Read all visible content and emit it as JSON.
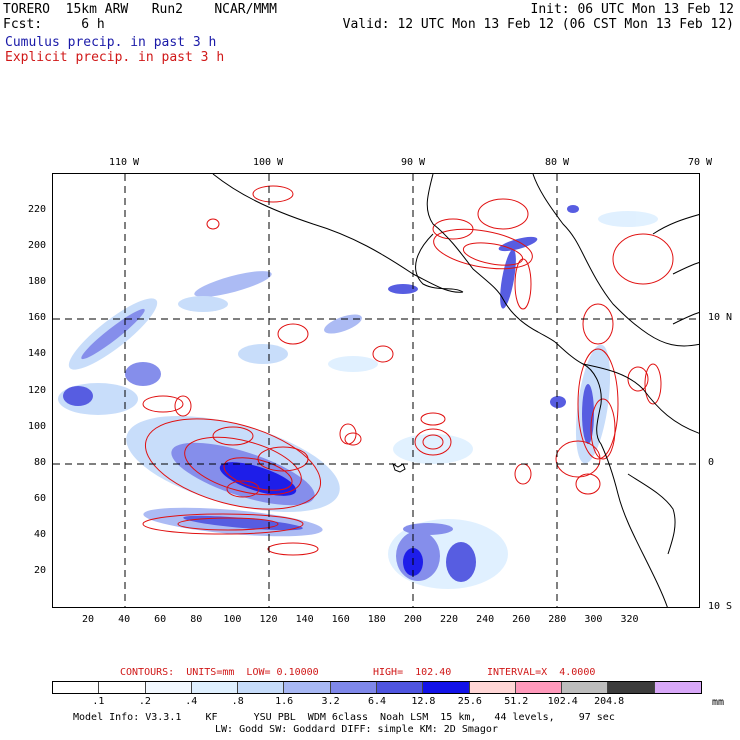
{
  "header": {
    "model": "TORERO  15km ARW   Run2    NCAR/MMM",
    "init": "Init: 06 UTC Mon 13 Feb 12",
    "fcst": "Fcst:     6 h",
    "valid": "Valid: 12 UTC Mon 13 Feb 12 (06 CST Mon 13 Feb 12)",
    "cumulus_label": "Cumulus precip. in past 3 h",
    "explicit_label": "Explicit precip. in past 3 h"
  },
  "map": {
    "top_lon_labels": [
      "110 W",
      "100 W",
      "90 W",
      "80 W",
      "70 W"
    ],
    "right_lat_labels": [
      "10 N",
      "0",
      "10 S"
    ],
    "x_ticks": [
      "20",
      "40",
      "60",
      "80",
      "100",
      "120",
      "140",
      "160",
      "180",
      "200",
      "220",
      "240",
      "260",
      "280",
      "300",
      "320"
    ],
    "y_ticks": [
      "20",
      "40",
      "60",
      "80",
      "100",
      "120",
      "140",
      "160",
      "180",
      "200",
      "220"
    ]
  },
  "contour_info": {
    "units": "CONTOURS:  UNITS=mm  LOW= 0.10000",
    "high": "HIGH=  102.40",
    "interval": "INTERVAL=X  4.0000"
  },
  "legend": {
    "labels": [
      ".1",
      ".2",
      ".4",
      ".8",
      "1.6",
      "3.2",
      "6.4",
      "12.8",
      "25.6",
      "51.2",
      "102.4",
      "204.8"
    ],
    "unit": "mm",
    "colors": [
      "#ffffff",
      "#ffffff",
      "#f2f8ff",
      "#dff0ff",
      "#c6dcfa",
      "#a8b8f4",
      "#7f88ea",
      "#4f55e0",
      "#1212e8",
      "#ffd6d6",
      "#ff99bb",
      "#bdbdbd",
      "#3c3c3c",
      "#d8a8f8"
    ]
  },
  "footer": {
    "line1": "Model Info: V3.3.1    KF      YSU PBL  WDM 6class  Noah LSM  15 km,   44 levels,    97 sec",
    "line2": "LW: Godd SW: Goddard DIFF: simple KM: 2D Smagor"
  },
  "colors": {
    "contour_red": "#e01010",
    "cumulus_blue": "#1a1aa8",
    "dark_blue": "#1212e8"
  }
}
